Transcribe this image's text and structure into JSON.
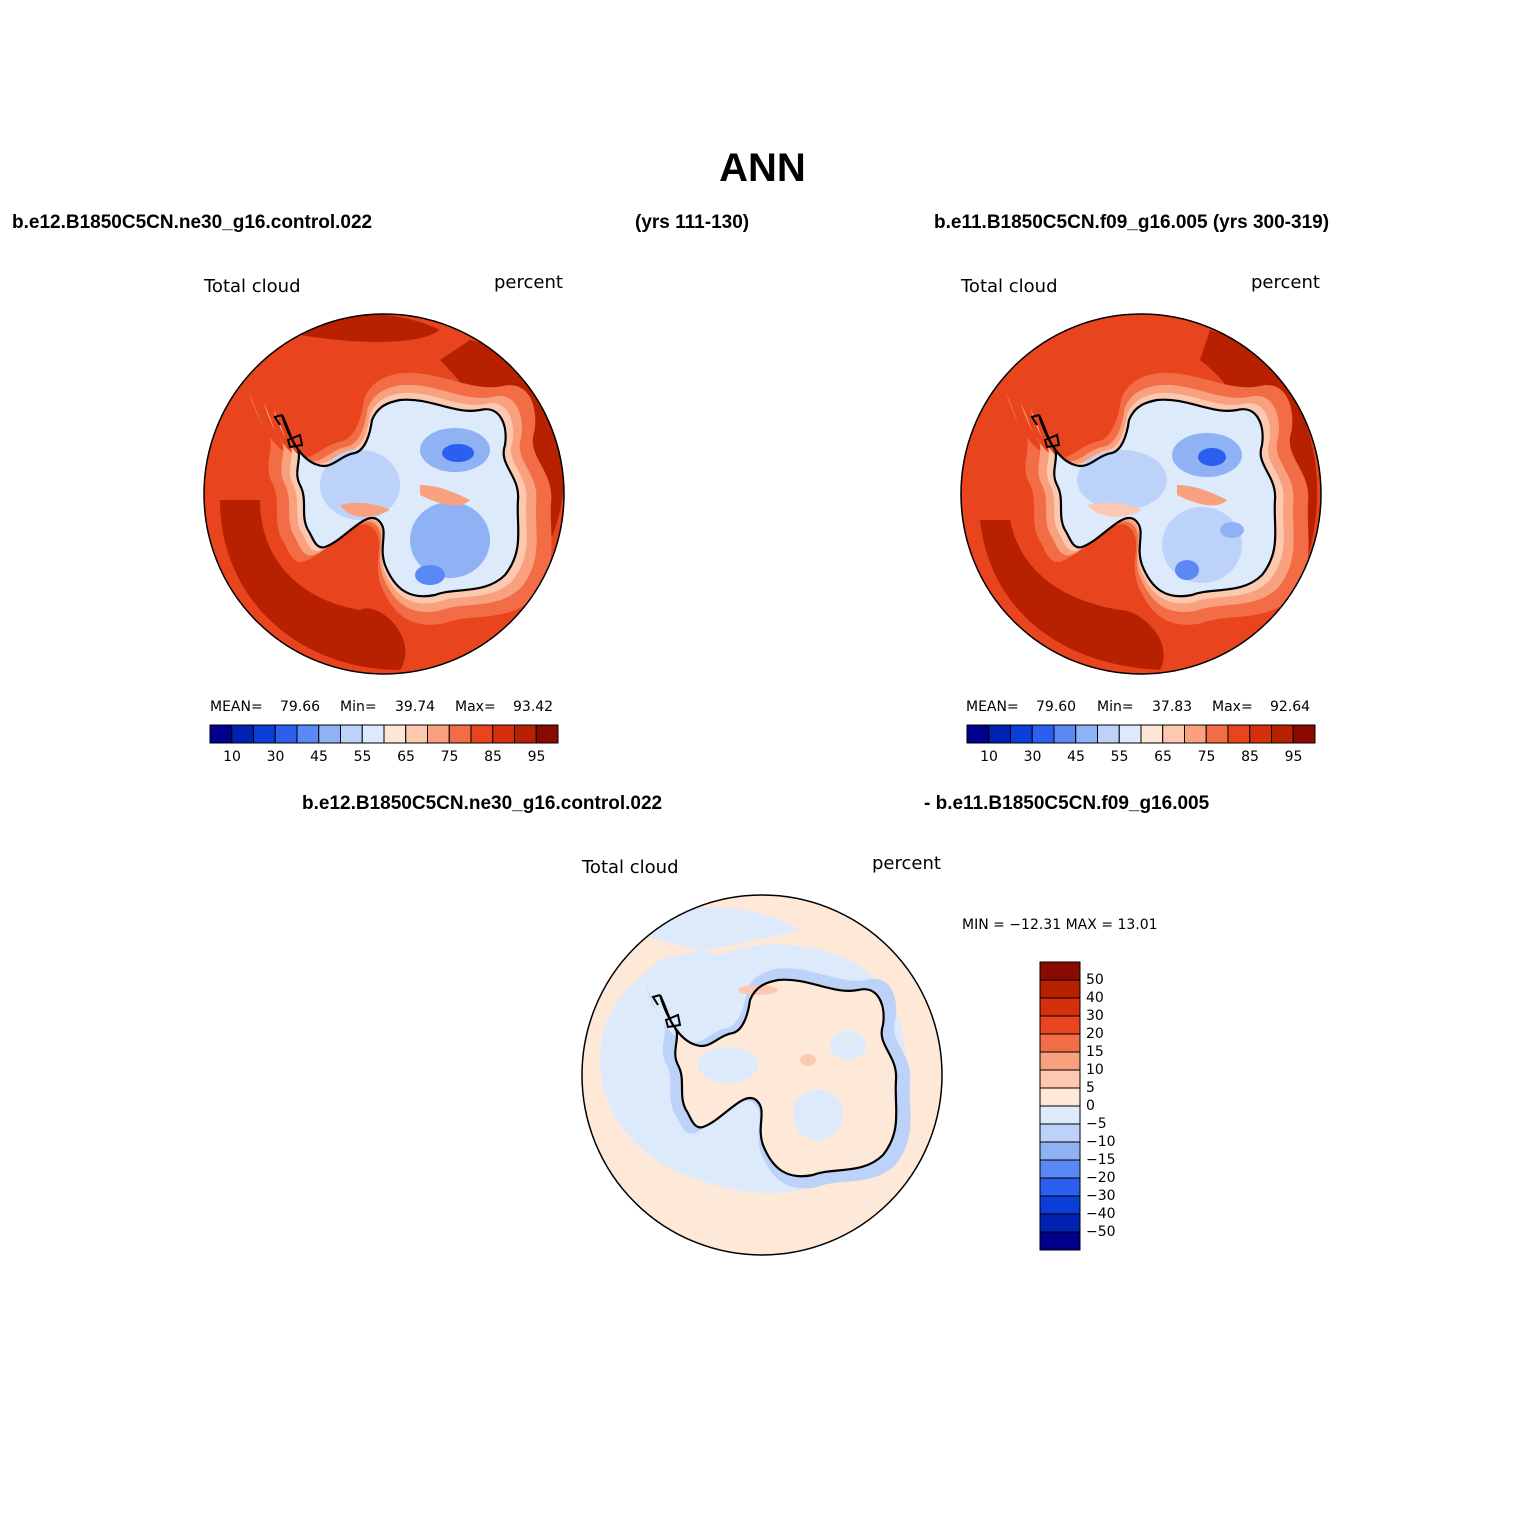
{
  "title": "ANN",
  "header": {
    "case1": "b.e12.B1850C5CN.ne30_g16.control.022",
    "case1_years": "(yrs 111-130)",
    "case2_with_years": "b.e11.B1850C5CN.f09_g16.005 (yrs 300-319)"
  },
  "panels": [
    {
      "var_label": "Total cloud",
      "units": "percent",
      "stats": {
        "mean_label": "MEAN=",
        "mean": "79.66",
        "min_label": "Min=",
        "min": "39.74",
        "max_label": "Max=",
        "max": "93.42"
      },
      "colorbar_labels": [
        "10",
        "30",
        "45",
        "55",
        "65",
        "75",
        "85",
        "95"
      ]
    },
    {
      "var_label": "Total cloud",
      "units": "percent",
      "stats": {
        "mean_label": "MEAN=",
        "mean": "79.60",
        "min_label": "Min=",
        "min": "37.83",
        "max_label": "Max=",
        "max": "92.64"
      },
      "colorbar_labels": [
        "10",
        "30",
        "45",
        "55",
        "65",
        "75",
        "85",
        "95"
      ]
    }
  ],
  "difference": {
    "title_left": "b.e12.B1850C5CN.ne30_g16.control.022",
    "title_right": "- b.e11.B1850C5CN.f09_g16.005",
    "var_label": "Total cloud",
    "units": "percent",
    "minmax": "MIN = −12.31  MAX =   13.01",
    "colorbar_labels": [
      "50",
      "40",
      "30",
      "20",
      "15",
      "10",
      "5",
      "0",
      "−5",
      "−10",
      "−15",
      "−20",
      "−30",
      "−40",
      "−50"
    ]
  },
  "colors": {
    "abs_scale": [
      "#00008c",
      "#0022b0",
      "#0b3ed6",
      "#2a5ff0",
      "#5a88f5",
      "#8fb2f5",
      "#bdd2f8",
      "#ddeafc",
      "#fde6d6",
      "#fcc8b0",
      "#f9a07e",
      "#f26d45",
      "#e8441d",
      "#d52f0b",
      "#b72100",
      "#8a0a00"
    ],
    "diff_scale": [
      "#8a0a00",
      "#b72100",
      "#d52f0b",
      "#e8441d",
      "#f26d45",
      "#f9a07e",
      "#fcc8b0",
      "#fee8d8",
      "#ddeafc",
      "#bdd2f8",
      "#8fb2f5",
      "#5a88f5",
      "#2a5ff0",
      "#0b3ed6",
      "#0022b0",
      "#00008c"
    ]
  },
  "chart_data": [
    {
      "type": "heatmap",
      "projection": "south polar stereographic",
      "variable": "Total cloud",
      "units": "percent",
      "mean": 79.66,
      "min": 39.74,
      "max": 93.42,
      "contour_levels": [
        10,
        20,
        30,
        40,
        45,
        50,
        55,
        60,
        65,
        70,
        75,
        80,
        85,
        90,
        95
      ]
    },
    {
      "type": "heatmap",
      "projection": "south polar stereographic",
      "variable": "Total cloud",
      "units": "percent",
      "mean": 79.6,
      "min": 37.83,
      "max": 92.64,
      "contour_levels": [
        10,
        20,
        30,
        40,
        45,
        50,
        55,
        60,
        65,
        70,
        75,
        80,
        85,
        90,
        95
      ]
    },
    {
      "type": "heatmap",
      "projection": "south polar stereographic",
      "variable": "Total cloud",
      "units": "percent",
      "min": -12.31,
      "max": 13.01,
      "contour_levels": [
        -50,
        -40,
        -30,
        -20,
        -15,
        -10,
        -5,
        0,
        5,
        10,
        15,
        20,
        30,
        40,
        50
      ]
    }
  ]
}
